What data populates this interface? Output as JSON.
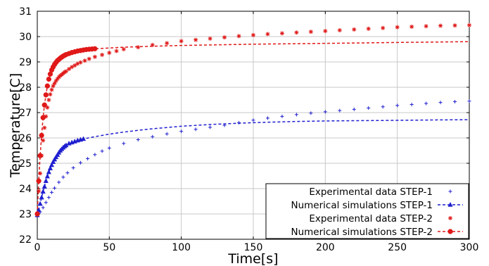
{
  "chart_data": {
    "type": "scatter",
    "title": "",
    "xlabel": "Time[s]",
    "ylabel": "Temperature[C]",
    "xlim": [
      0,
      300
    ],
    "ylim": [
      22,
      31
    ],
    "xticks": [
      "0",
      "50",
      "100",
      "150",
      "200",
      "250",
      "300"
    ],
    "yticks": [
      "22",
      "23",
      "24",
      "25",
      "26",
      "27",
      "28",
      "29",
      "30",
      "31"
    ],
    "grid": true,
    "legend_position": "bottom-right",
    "series": [
      {
        "name": "Experimental data STEP-1",
        "color": "#1f1fd0",
        "marker": "plus",
        "line": "none",
        "points": [
          [
            0,
            22.95
          ],
          [
            2,
            23.08
          ],
          [
            4,
            23.25
          ],
          [
            6,
            23.45
          ],
          [
            8,
            23.65
          ],
          [
            10,
            23.85
          ],
          [
            12,
            24.02
          ],
          [
            15,
            24.25
          ],
          [
            18,
            24.45
          ],
          [
            21,
            24.62
          ],
          [
            25,
            24.82
          ],
          [
            30,
            25.02
          ],
          [
            35,
            25.18
          ],
          [
            40,
            25.34
          ],
          [
            45,
            25.48
          ],
          [
            50,
            25.6
          ],
          [
            60,
            25.78
          ],
          [
            70,
            25.93
          ],
          [
            80,
            26.05
          ],
          [
            90,
            26.16
          ],
          [
            100,
            26.26
          ],
          [
            110,
            26.34
          ],
          [
            120,
            26.42
          ],
          [
            130,
            26.5
          ],
          [
            140,
            26.6
          ],
          [
            150,
            26.7
          ],
          [
            160,
            26.78
          ],
          [
            170,
            26.85
          ],
          [
            180,
            26.92
          ],
          [
            190,
            26.98
          ],
          [
            200,
            27.03
          ],
          [
            210,
            27.08
          ],
          [
            220,
            27.13
          ],
          [
            230,
            27.18
          ],
          [
            240,
            27.23
          ],
          [
            250,
            27.28
          ],
          [
            260,
            27.32
          ],
          [
            270,
            27.36
          ],
          [
            280,
            27.4
          ],
          [
            290,
            27.43
          ],
          [
            300,
            27.45
          ]
        ]
      },
      {
        "name": "Numerical simulations STEP-1",
        "color": "#1f1fd0",
        "marker": "triangle",
        "line": "dashed",
        "points": [
          [
            0,
            22.95
          ],
          [
            1,
            23.15
          ],
          [
            2,
            23.4
          ],
          [
            3,
            23.65
          ],
          [
            4,
            23.88
          ],
          [
            5,
            24.08
          ],
          [
            6,
            24.3
          ],
          [
            7,
            24.48
          ],
          [
            8,
            24.65
          ],
          [
            9,
            24.8
          ],
          [
            10,
            24.93
          ],
          [
            11,
            25.05
          ],
          [
            12,
            25.15
          ],
          [
            13,
            25.24
          ],
          [
            14,
            25.33
          ],
          [
            15,
            25.42
          ],
          [
            16,
            25.5
          ],
          [
            17,
            25.56
          ],
          [
            18,
            25.62
          ],
          [
            19,
            25.67
          ],
          [
            20,
            25.71
          ],
          [
            22,
            25.78
          ],
          [
            24,
            25.82
          ],
          [
            26,
            25.86
          ],
          [
            28,
            25.9
          ],
          [
            30,
            25.93
          ],
          [
            32,
            25.96
          ]
        ],
        "curve": [
          [
            32,
            25.96
          ],
          [
            40,
            26.05
          ],
          [
            50,
            26.15
          ],
          [
            60,
            26.23
          ],
          [
            70,
            26.3
          ],
          [
            80,
            26.36
          ],
          [
            90,
            26.41
          ],
          [
            100,
            26.46
          ],
          [
            120,
            26.53
          ],
          [
            140,
            26.58
          ],
          [
            160,
            26.62
          ],
          [
            180,
            26.65
          ],
          [
            200,
            26.67
          ],
          [
            220,
            26.68
          ],
          [
            240,
            26.69
          ],
          [
            260,
            26.7
          ],
          [
            280,
            26.71
          ],
          [
            300,
            26.72
          ]
        ]
      },
      {
        "name": "Experimental data STEP-2",
        "color": "#e01818",
        "marker": "asterisk",
        "line": "none",
        "points": [
          [
            0,
            23.0
          ],
          [
            1,
            23.9
          ],
          [
            2,
            24.6
          ],
          [
            3,
            25.3
          ],
          [
            4,
            25.9
          ],
          [
            5,
            26.4
          ],
          [
            6,
            26.85
          ],
          [
            7,
            27.2
          ],
          [
            8,
            27.5
          ],
          [
            9,
            27.72
          ],
          [
            10,
            27.9
          ],
          [
            11,
            28.05
          ],
          [
            12,
            28.15
          ],
          [
            13,
            28.25
          ],
          [
            14,
            28.33
          ],
          [
            15,
            28.4
          ],
          [
            16,
            28.46
          ],
          [
            17,
            28.5
          ],
          [
            18,
            28.55
          ],
          [
            19,
            28.6
          ],
          [
            20,
            28.63
          ],
          [
            22,
            28.72
          ],
          [
            24,
            28.8
          ],
          [
            26,
            28.86
          ],
          [
            28,
            28.93
          ],
          [
            30,
            28.98
          ],
          [
            33,
            29.05
          ],
          [
            36,
            29.12
          ],
          [
            40,
            29.2
          ],
          [
            45,
            29.28
          ],
          [
            50,
            29.36
          ],
          [
            55,
            29.43
          ],
          [
            60,
            29.5
          ],
          [
            70,
            29.58
          ],
          [
            80,
            29.67
          ],
          [
            90,
            29.74
          ],
          [
            100,
            29.82
          ],
          [
            110,
            29.87
          ],
          [
            120,
            29.92
          ],
          [
            130,
            29.97
          ],
          [
            140,
            30.02
          ],
          [
            150,
            30.06
          ],
          [
            160,
            30.1
          ],
          [
            170,
            30.13
          ],
          [
            180,
            30.16
          ],
          [
            190,
            30.19
          ],
          [
            200,
            30.22
          ],
          [
            210,
            30.25
          ],
          [
            220,
            30.28
          ],
          [
            230,
            30.31
          ],
          [
            240,
            30.34
          ],
          [
            250,
            30.37
          ],
          [
            260,
            30.39
          ],
          [
            270,
            30.41
          ],
          [
            280,
            30.43
          ],
          [
            290,
            30.44
          ],
          [
            300,
            30.45
          ]
        ]
      },
      {
        "name": "Numerical simulations STEP-2",
        "color": "#e01818",
        "marker": "circle",
        "line": "dashed",
        "points": [
          [
            0,
            23.0
          ],
          [
            1,
            24.3
          ],
          [
            2,
            25.3
          ],
          [
            3,
            26.1
          ],
          [
            4,
            26.8
          ],
          [
            5,
            27.3
          ],
          [
            6,
            27.7
          ],
          [
            7,
            28.05
          ],
          [
            8,
            28.32
          ],
          [
            9,
            28.52
          ],
          [
            10,
            28.68
          ],
          [
            11,
            28.8
          ],
          [
            12,
            28.9
          ],
          [
            13,
            28.98
          ],
          [
            14,
            29.05
          ],
          [
            15,
            29.1
          ],
          [
            16,
            29.15
          ],
          [
            17,
            29.19
          ],
          [
            18,
            29.23
          ],
          [
            19,
            29.26
          ],
          [
            20,
            29.29
          ],
          [
            22,
            29.33
          ],
          [
            24,
            29.37
          ],
          [
            26,
            29.4
          ],
          [
            28,
            29.43
          ],
          [
            30,
            29.45
          ],
          [
            32,
            29.47
          ],
          [
            34,
            29.49
          ],
          [
            36,
            29.5
          ],
          [
            38,
            29.51
          ],
          [
            40,
            29.52
          ]
        ],
        "curve": [
          [
            40,
            29.52
          ],
          [
            60,
            29.58
          ],
          [
            80,
            29.62
          ],
          [
            100,
            29.65
          ],
          [
            120,
            29.67
          ],
          [
            150,
            29.7
          ],
          [
            180,
            29.72
          ],
          [
            210,
            29.74
          ],
          [
            240,
            29.76
          ],
          [
            270,
            29.78
          ],
          [
            300,
            29.8
          ]
        ]
      }
    ]
  }
}
